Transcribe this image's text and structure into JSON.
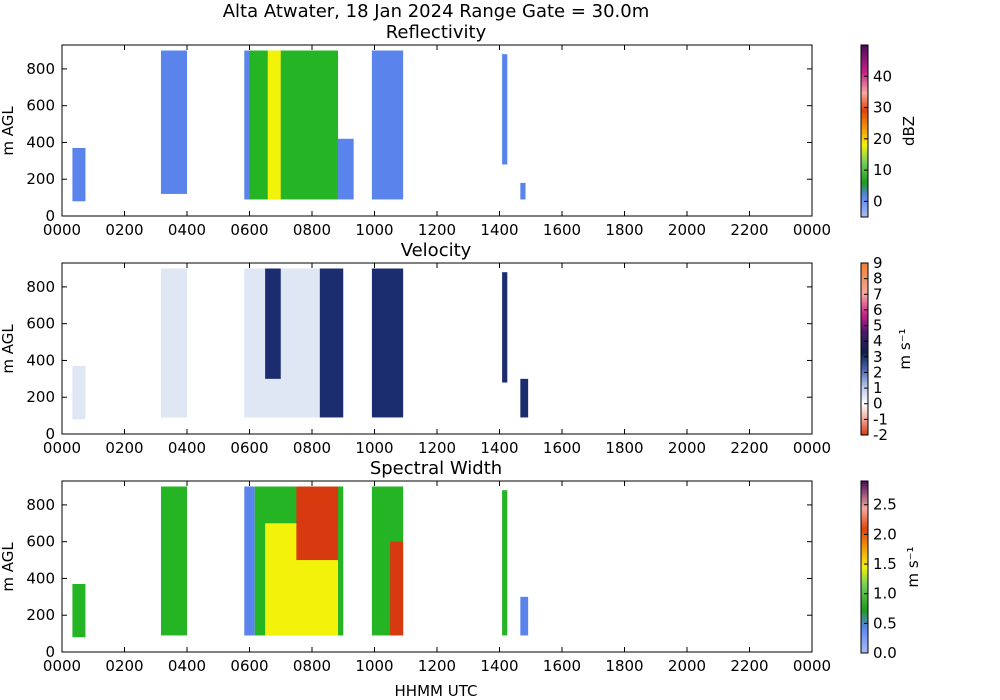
{
  "suptitle": "Alta Atwater, 18 Jan 2024 Range Gate = 30.0m",
  "xlabel": "HHMM UTC",
  "colors": {
    "refl_blue": "#5a84ec",
    "refl_green": "#24b424",
    "refl_yellow": "#f2f20a",
    "vel_light": "#dfe6f4",
    "vel_dark": "#1b2d6e",
    "sw_blue": "#5a84ec",
    "sw_green": "#24b424",
    "sw_yellow": "#f2f20a",
    "sw_red": "#d83a10"
  },
  "chart_data": [
    {
      "type": "heatmap",
      "title": "Reflectivity",
      "ylabel": "m AGL",
      "colorbar_label": "dBZ",
      "colorbar_ticks": [
        "0",
        "10",
        "20",
        "30",
        "40"
      ],
      "colorbar_range": [
        -5,
        50
      ],
      "x_ticks": [
        "0000",
        "0200",
        "0400",
        "0600",
        "0800",
        "1000",
        "1200",
        "1400",
        "1600",
        "1800",
        "2000",
        "2200",
        "0000"
      ],
      "y_ticks": [
        "0",
        "200",
        "400",
        "600",
        "800"
      ],
      "xlim_hours": [
        0,
        24
      ],
      "ylim": [
        0,
        930
      ],
      "echo_regions": [
        {
          "start": "0020",
          "end": "0045",
          "bottom": 80,
          "top": 370,
          "color": "refl_blue"
        },
        {
          "start": "0310",
          "end": "0400",
          "bottom": 120,
          "top": 900,
          "color": "refl_blue"
        },
        {
          "start": "0550",
          "end": "0605",
          "bottom": 90,
          "top": 900,
          "color": "refl_blue"
        },
        {
          "start": "0600",
          "end": "0850",
          "bottom": 90,
          "top": 900,
          "color": "refl_green"
        },
        {
          "start": "0635",
          "end": "0700",
          "bottom": 90,
          "top": 900,
          "color": "refl_yellow"
        },
        {
          "start": "0850",
          "end": "0920",
          "bottom": 90,
          "top": 420,
          "color": "refl_blue"
        },
        {
          "start": "0955",
          "end": "1055",
          "bottom": 90,
          "top": 900,
          "color": "refl_blue"
        },
        {
          "start": "1405",
          "end": "1415",
          "bottom": 280,
          "top": 880,
          "color": "refl_blue"
        },
        {
          "start": "1440",
          "end": "1450",
          "bottom": 90,
          "top": 180,
          "color": "refl_blue"
        }
      ]
    },
    {
      "type": "heatmap",
      "title": "Velocity",
      "ylabel": "m AGL",
      "colorbar_label": "m s⁻¹",
      "colorbar_ticks": [
        "-2",
        "-1",
        "0",
        "1",
        "2",
        "3",
        "4",
        "5",
        "6",
        "7",
        "8",
        "9"
      ],
      "colorbar_range": [
        -2,
        9
      ],
      "x_ticks": [
        "0000",
        "0200",
        "0400",
        "0600",
        "0800",
        "1000",
        "1200",
        "1400",
        "1600",
        "1800",
        "2000",
        "2200",
        "0000"
      ],
      "y_ticks": [
        "0",
        "200",
        "400",
        "600",
        "800"
      ],
      "xlim_hours": [
        0,
        24
      ],
      "ylim": [
        0,
        930
      ],
      "echo_regions": [
        {
          "start": "0020",
          "end": "0045",
          "bottom": 80,
          "top": 370,
          "color": "vel_light"
        },
        {
          "start": "0310",
          "end": "0400",
          "bottom": 90,
          "top": 900,
          "color": "vel_light"
        },
        {
          "start": "0550",
          "end": "0850",
          "bottom": 90,
          "top": 900,
          "color": "vel_light"
        },
        {
          "start": "0630",
          "end": "0700",
          "bottom": 300,
          "top": 900,
          "color": "vel_dark"
        },
        {
          "start": "0815",
          "end": "0900",
          "bottom": 90,
          "top": 900,
          "color": "vel_dark"
        },
        {
          "start": "0955",
          "end": "1055",
          "bottom": 90,
          "top": 900,
          "color": "vel_dark"
        },
        {
          "start": "1405",
          "end": "1415",
          "bottom": 280,
          "top": 880,
          "color": "vel_dark"
        },
        {
          "start": "1440",
          "end": "1455",
          "bottom": 90,
          "top": 300,
          "color": "vel_dark"
        }
      ]
    },
    {
      "type": "heatmap",
      "title": "Spectral Width",
      "ylabel": "m AGL",
      "colorbar_label": "m s⁻¹",
      "colorbar_ticks": [
        "0.0",
        "0.5",
        "1.0",
        "1.5",
        "2.0",
        "2.5"
      ],
      "colorbar_range": [
        0,
        2.9
      ],
      "x_ticks": [
        "0000",
        "0200",
        "0400",
        "0600",
        "0800",
        "1000",
        "1200",
        "1400",
        "1600",
        "1800",
        "2000",
        "2200",
        "0000"
      ],
      "y_ticks": [
        "0",
        "200",
        "400",
        "600",
        "800"
      ],
      "xlim_hours": [
        0,
        24
      ],
      "ylim": [
        0,
        930
      ],
      "echo_regions": [
        {
          "start": "0020",
          "end": "0045",
          "bottom": 80,
          "top": 370,
          "color": "sw_green"
        },
        {
          "start": "0310",
          "end": "0400",
          "bottom": 90,
          "top": 900,
          "color": "sw_green"
        },
        {
          "start": "0550",
          "end": "0610",
          "bottom": 90,
          "top": 900,
          "color": "sw_blue"
        },
        {
          "start": "0610",
          "end": "0900",
          "bottom": 90,
          "top": 900,
          "color": "sw_green"
        },
        {
          "start": "0630",
          "end": "0850",
          "bottom": 90,
          "top": 700,
          "color": "sw_yellow"
        },
        {
          "start": "0730",
          "end": "0850",
          "bottom": 500,
          "top": 900,
          "color": "sw_red"
        },
        {
          "start": "0955",
          "end": "1055",
          "bottom": 90,
          "top": 900,
          "color": "sw_green"
        },
        {
          "start": "1030",
          "end": "1055",
          "bottom": 90,
          "top": 600,
          "color": "sw_red"
        },
        {
          "start": "1405",
          "end": "1415",
          "bottom": 90,
          "top": 880,
          "color": "sw_green"
        },
        {
          "start": "1440",
          "end": "1455",
          "bottom": 90,
          "top": 300,
          "color": "sw_blue"
        }
      ]
    }
  ]
}
